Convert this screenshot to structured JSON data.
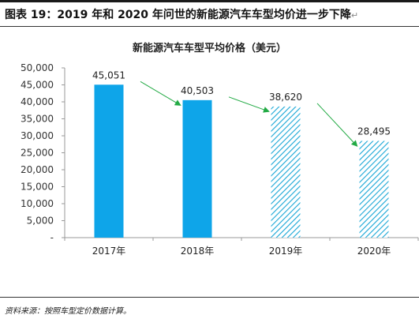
{
  "figure": {
    "title": "图表 19：2019 年和 2020 年问世的新能源汽车车型均价进一步下降",
    "source": "资料来源：按照车型定价数据计算。"
  },
  "colors": {
    "bar_solid": "#0ea5e9",
    "bar_hatch": "#17a6d6",
    "arrow": "#22aa44",
    "axis": "#999999"
  },
  "chart_data": {
    "type": "bar",
    "title": "新能源汽车车型平均价格（美元）",
    "categories": [
      "2017年",
      "2018年",
      "2019年",
      "2020年"
    ],
    "values": [
      45051,
      40503,
      38620,
      28495
    ],
    "value_labels": [
      "45,051",
      "40,503",
      "38,620",
      "28,495"
    ],
    "bar_style": [
      "solid",
      "solid",
      "hatched",
      "hatched"
    ],
    "ylim": [
      0,
      50000
    ],
    "yticks": [
      0,
      5000,
      10000,
      15000,
      20000,
      25000,
      30000,
      35000,
      40000,
      45000,
      50000
    ],
    "ytick_labels": [
      "-",
      "5,000",
      "10,000",
      "15,000",
      "20,000",
      "25,000",
      "30,000",
      "35,000",
      "40,000",
      "45,000",
      "50,000"
    ],
    "xlabel": "",
    "ylabel": "",
    "grid": false,
    "annotations": "green trend arrows between consecutive bars"
  }
}
